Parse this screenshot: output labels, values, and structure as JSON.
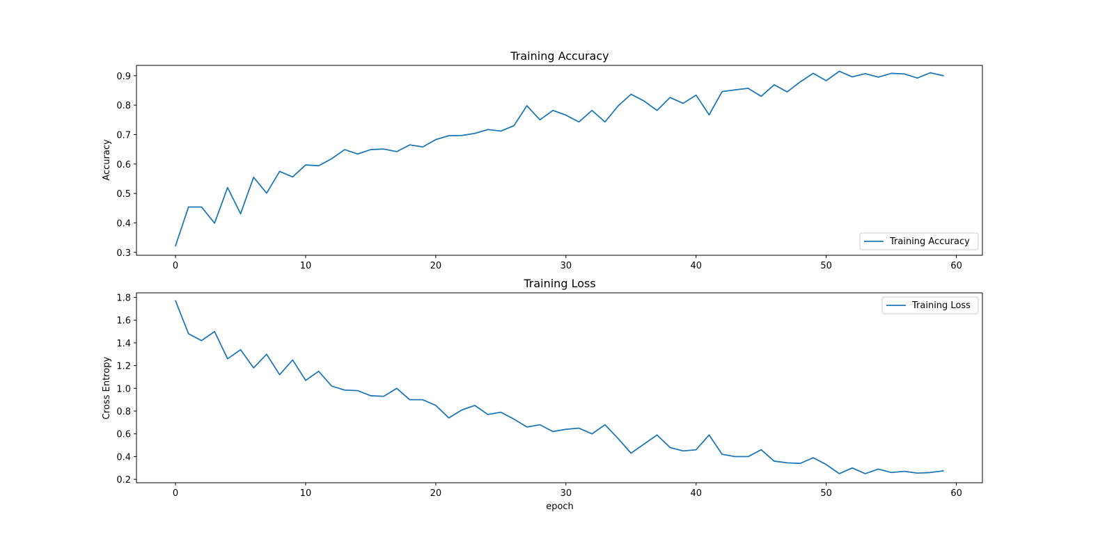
{
  "chart_data": [
    {
      "type": "line",
      "title": "Training Accuracy",
      "xlabel": "",
      "ylabel": "Accuracy",
      "xlim": [
        -3,
        62
      ],
      "ylim": [
        0.29,
        0.935
      ],
      "xticks": [
        0,
        10,
        20,
        30,
        40,
        50,
        60
      ],
      "xtick_labels": [
        "0",
        "10",
        "20",
        "30",
        "40",
        "50",
        "60"
      ],
      "yticks": [
        0.3,
        0.4,
        0.5,
        0.6,
        0.7,
        0.8,
        0.9
      ],
      "ytick_labels": [
        "0.3",
        "0.4",
        "0.5",
        "0.6",
        "0.7",
        "0.8",
        "0.9"
      ],
      "grid": false,
      "legend_position": "bottom-right",
      "series": [
        {
          "name": "Training Accuracy",
          "color": "#1f77b4",
          "x": [
            0,
            1,
            2,
            3,
            4,
            5,
            6,
            7,
            8,
            9,
            10,
            11,
            12,
            13,
            14,
            15,
            16,
            17,
            18,
            19,
            20,
            21,
            22,
            23,
            24,
            25,
            26,
            27,
            28,
            29,
            30,
            31,
            32,
            33,
            34,
            35,
            36,
            37,
            38,
            39,
            40,
            41,
            42,
            43,
            44,
            45,
            46,
            47,
            48,
            49,
            50,
            51,
            52,
            53,
            54,
            55,
            56,
            57,
            58,
            59
          ],
          "values": [
            0.322,
            0.454,
            0.454,
            0.399,
            0.52,
            0.431,
            0.555,
            0.501,
            0.575,
            0.556,
            0.597,
            0.594,
            0.618,
            0.649,
            0.634,
            0.649,
            0.651,
            0.642,
            0.665,
            0.658,
            0.683,
            0.696,
            0.697,
            0.704,
            0.717,
            0.712,
            0.73,
            0.798,
            0.75,
            0.782,
            0.766,
            0.743,
            0.782,
            0.743,
            0.797,
            0.837,
            0.814,
            0.782,
            0.826,
            0.806,
            0.834,
            0.767,
            0.846,
            0.852,
            0.857,
            0.83,
            0.869,
            0.845,
            0.879,
            0.908,
            0.883,
            0.915,
            0.896,
            0.907,
            0.895,
            0.908,
            0.906,
            0.892,
            0.91,
            0.9
          ]
        }
      ]
    },
    {
      "type": "line",
      "title": "Training Loss",
      "xlabel": "epoch",
      "ylabel": "Cross Entropy",
      "xlim": [
        -3,
        62
      ],
      "ylim": [
        0.17,
        1.84
      ],
      "xticks": [
        0,
        10,
        20,
        30,
        40,
        50,
        60
      ],
      "xtick_labels": [
        "0",
        "10",
        "20",
        "30",
        "40",
        "50",
        "60"
      ],
      "yticks": [
        0.2,
        0.4,
        0.6,
        0.8,
        1.0,
        1.2,
        1.4,
        1.6,
        1.8
      ],
      "ytick_labels": [
        "0.2",
        "0.4",
        "0.6",
        "0.8",
        "1.0",
        "1.2",
        "1.4",
        "1.6",
        "1.8"
      ],
      "grid": false,
      "legend_position": "top-right",
      "series": [
        {
          "name": "Training Loss",
          "color": "#1f77b4",
          "x": [
            0,
            1,
            2,
            3,
            4,
            5,
            6,
            7,
            8,
            9,
            10,
            11,
            12,
            13,
            14,
            15,
            16,
            17,
            18,
            19,
            20,
            21,
            22,
            23,
            24,
            25,
            26,
            27,
            28,
            29,
            30,
            31,
            32,
            33,
            34,
            35,
            36,
            37,
            38,
            39,
            40,
            41,
            42,
            43,
            44,
            45,
            46,
            47,
            48,
            49,
            50,
            51,
            52,
            53,
            54,
            55,
            56,
            57,
            58,
            59
          ],
          "values": [
            1.77,
            1.48,
            1.42,
            1.5,
            1.26,
            1.34,
            1.18,
            1.3,
            1.12,
            1.25,
            1.07,
            1.15,
            1.02,
            0.985,
            0.98,
            0.935,
            0.93,
            1.0,
            0.9,
            0.9,
            0.85,
            0.74,
            0.81,
            0.85,
            0.77,
            0.79,
            0.73,
            0.66,
            0.68,
            0.62,
            0.64,
            0.65,
            0.6,
            0.68,
            0.56,
            0.43,
            0.51,
            0.59,
            0.48,
            0.45,
            0.46,
            0.59,
            0.42,
            0.4,
            0.4,
            0.46,
            0.36,
            0.345,
            0.34,
            0.39,
            0.33,
            0.25,
            0.3,
            0.25,
            0.29,
            0.26,
            0.27,
            0.255,
            0.26,
            0.275
          ]
        }
      ]
    }
  ]
}
